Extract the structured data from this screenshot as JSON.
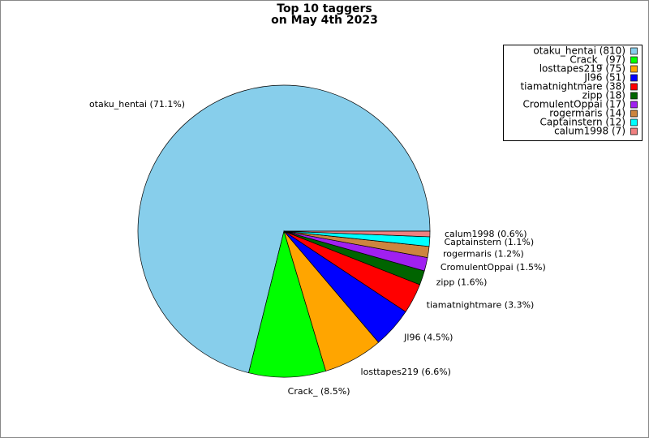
{
  "chart_data": {
    "type": "pie",
    "title": "Top 10 taggers",
    "subtitle": "on May 4th 2023",
    "values": [
      810,
      97,
      75,
      51,
      38,
      18,
      17,
      14,
      12,
      7
    ],
    "legend_labels": [
      "otaku_hentai (810)",
      "Crack_ (97)",
      "losttapes219 (75)",
      "Jl96 (51)",
      "tiamatnightmare (38)",
      "zipp (18)",
      "CromulentOppai (17)",
      "rogermaris (14)",
      "Captainstern (12)",
      "calum1998 (7)"
    ],
    "slice_labels": [
      "otaku_hentai (71.1%)",
      "Crack_ (8.5%)",
      "losttapes219 (6.6%)",
      "Jl96 (4.5%)",
      "tiamatnightmare (3.3%)",
      "zipp (1.6%)",
      "CromulentOppai (1.5%)",
      "rogermaris (1.2%)",
      "Captainstern (1.1%)",
      "calum1998 (0.6%)"
    ],
    "colors": [
      "#87ceeb",
      "#00ff00",
      "#ffa500",
      "#0000ff",
      "#ff0000",
      "#006400",
      "#a020f0",
      "#cd853f",
      "#00ffff",
      "#f08080"
    ],
    "legend": "upper right"
  }
}
